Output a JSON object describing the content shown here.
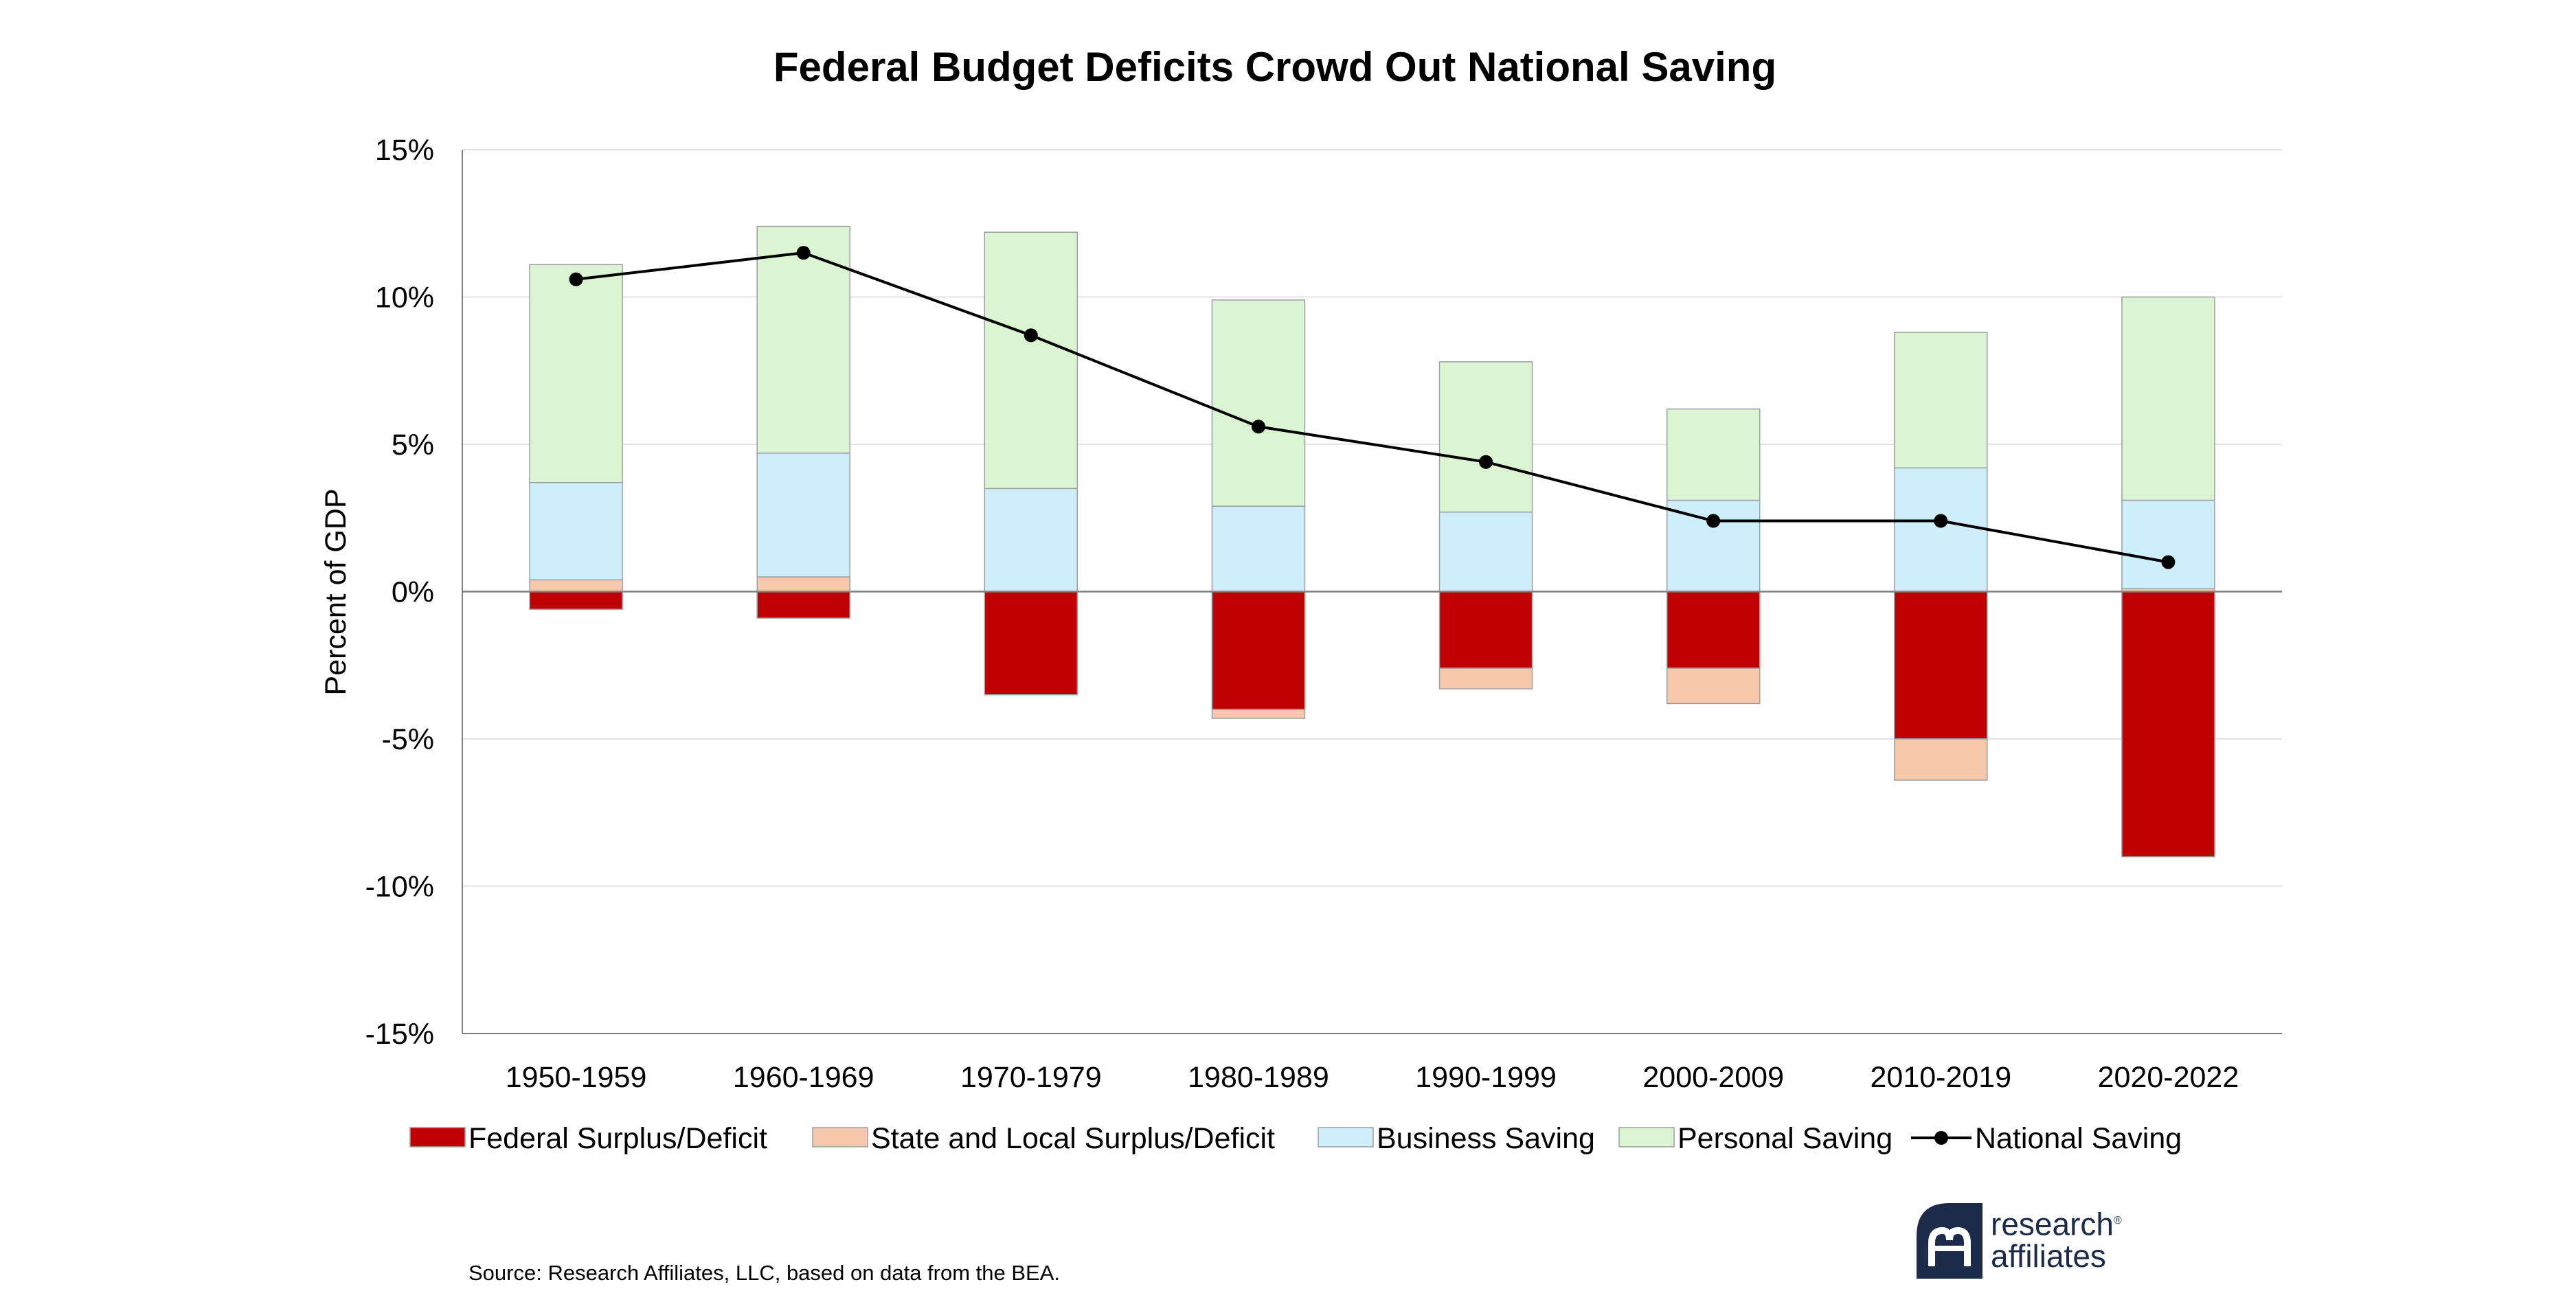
{
  "chart_data": {
    "type": "bar",
    "stacked": true,
    "title": "Federal Budget Deficits Crowd Out National Saving",
    "ylabel": "Percent of GDP",
    "xlabel": "",
    "ylim": [
      -15,
      15
    ],
    "yticks": [
      15,
      10,
      5,
      0,
      -5,
      -10,
      -15
    ],
    "ytick_labels": [
      "15%",
      "10%",
      "5%",
      "0%",
      "-5%",
      "-10%",
      "-15%"
    ],
    "grid": true,
    "legend_position": "bottom",
    "categories": [
      "1950-1959",
      "1960-1969",
      "1970-1979",
      "1980-1989",
      "1990-1999",
      "2000-2009",
      "2010-2019",
      "2020-2022"
    ],
    "series": [
      {
        "name": "Federal Surplus/Deficit",
        "kind": "bar",
        "color": "#c00000",
        "values": [
          -0.6,
          -0.9,
          -3.5,
          -4.0,
          -2.6,
          -2.6,
          -5.0,
          -9.0
        ]
      },
      {
        "name": "State and Local Surplus/Deficit",
        "kind": "bar",
        "color": "#f8c8ad",
        "values": [
          0.4,
          0.5,
          0.0,
          -0.3,
          -0.7,
          -1.2,
          -1.4,
          0.1
        ]
      },
      {
        "name": "Business Saving",
        "kind": "bar",
        "color": "#cdeefa",
        "values": [
          3.3,
          4.2,
          3.5,
          2.9,
          2.7,
          3.1,
          4.2,
          3.0
        ]
      },
      {
        "name": "Personal Saving",
        "kind": "bar",
        "color": "#dbf4d2",
        "values": [
          7.4,
          7.7,
          8.7,
          7.0,
          5.1,
          3.1,
          4.6,
          6.9
        ]
      },
      {
        "name": "National Saving",
        "kind": "line",
        "color": "#000000",
        "values": [
          10.6,
          11.5,
          8.7,
          5.6,
          4.4,
          2.4,
          2.4,
          1.0
        ]
      }
    ]
  },
  "footer": {
    "source": "Source: Research Affiliates, LLC, based on data from the BEA."
  },
  "logo": {
    "line1": "research",
    "line2": "affiliates",
    "registered": "®"
  }
}
